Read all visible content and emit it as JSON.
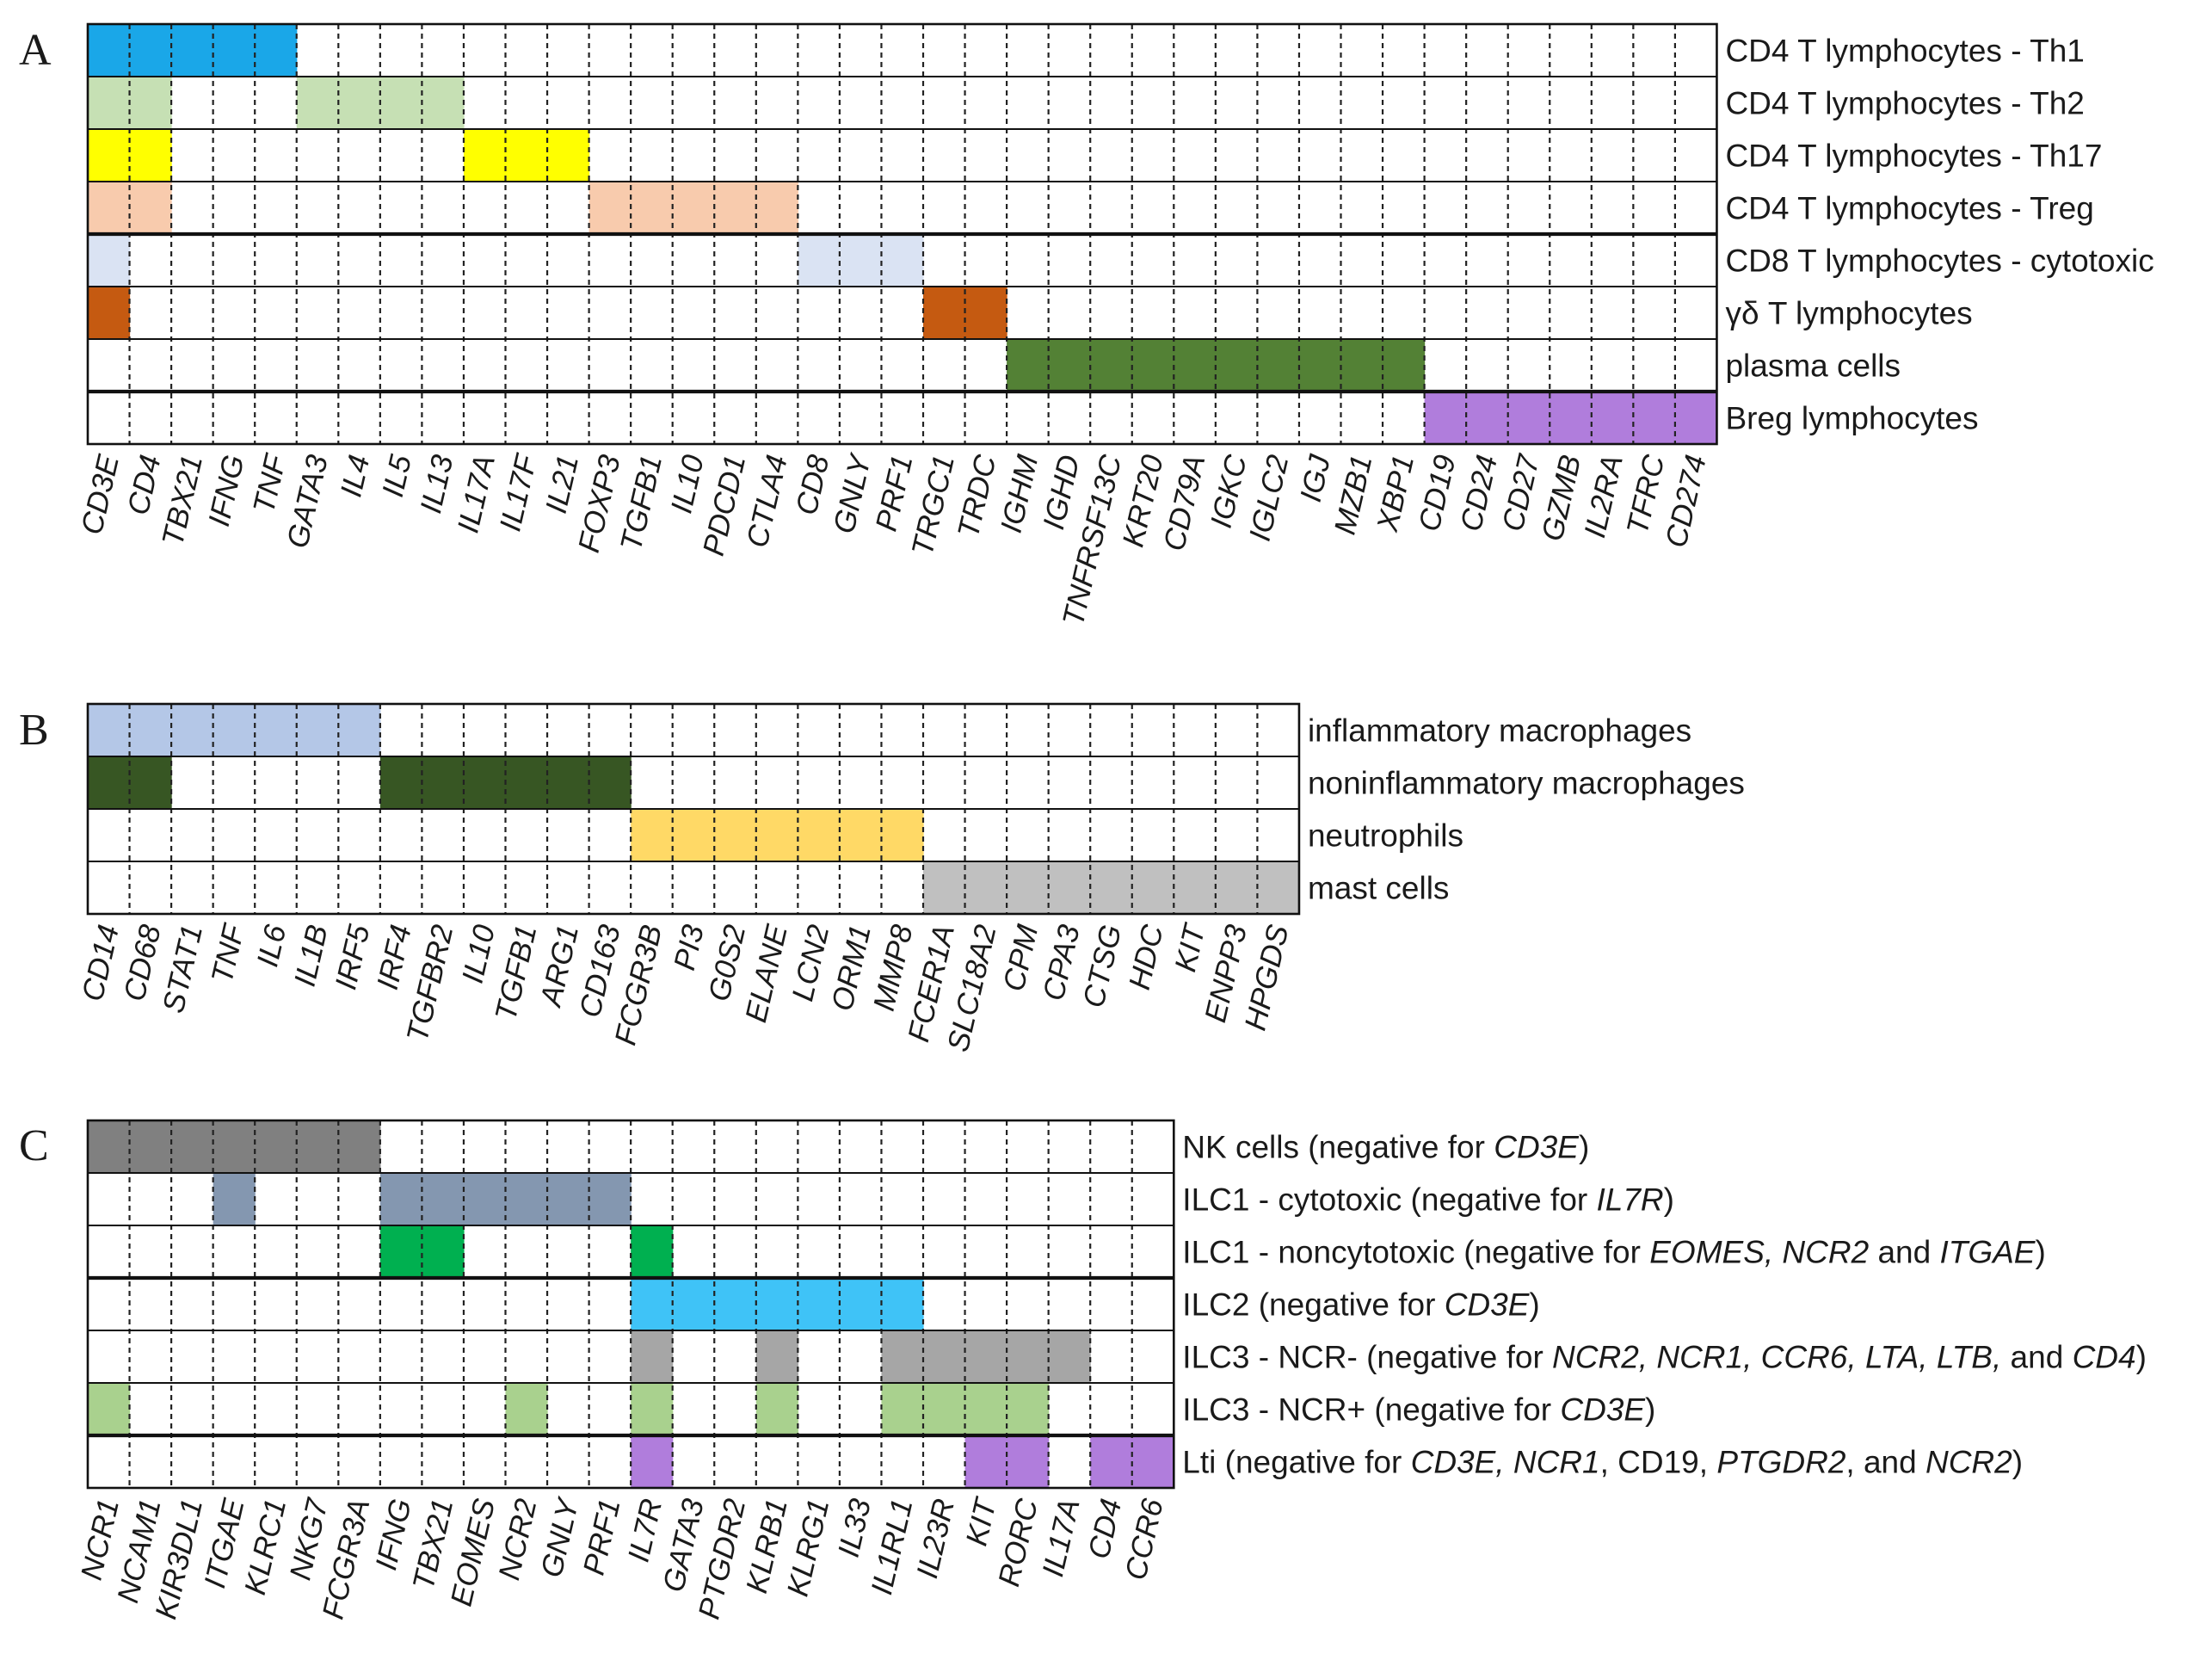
{
  "panels": [
    {
      "id": "A",
      "label": "A",
      "columns": [
        "CD3E",
        "CD4",
        "TBX21",
        "IFNG",
        "TNF",
        "GATA3",
        "IL4",
        "IL5",
        "IL13",
        "IL17A",
        "IL17F",
        "IL21",
        "FOXP3",
        "TGFB1",
        "IL10",
        "PDCD1",
        "CTLA4",
        "CD8",
        "GNLY",
        "PRF1",
        "TRGC1",
        "TRDC",
        "IGHM",
        "IGHD",
        "TNFRSF13C",
        "KRT20",
        "CD79A",
        "IGKC",
        "IGLC2",
        "IGJ",
        "MZB1",
        "XBP1",
        "CD19",
        "CD24",
        "CD27",
        "GZMB",
        "IL2RA",
        "TFRC",
        "CD274"
      ],
      "thick_after_rows": [
        3,
        6
      ],
      "rows": [
        {
          "label": [
            {
              "t": "CD4 T lymphocytes - Th1"
            }
          ],
          "color": "#1aa7e8",
          "cols": [
            0,
            1,
            2,
            3,
            4
          ]
        },
        {
          "label": [
            {
              "t": "CD4 T lymphocytes - Th2"
            }
          ],
          "color": "#c6e0b4",
          "cols": [
            0,
            1,
            5,
            6,
            7,
            8
          ]
        },
        {
          "label": [
            {
              "t": "CD4 T lymphocytes - Th17"
            }
          ],
          "color": "#ffff00",
          "cols": [
            0,
            1,
            9,
            10,
            11
          ]
        },
        {
          "label": [
            {
              "t": "CD4 T lymphocytes - Treg"
            }
          ],
          "color": "#f8cbad",
          "cols": [
            0,
            1,
            12,
            13,
            14,
            15,
            16
          ]
        },
        {
          "label": [
            {
              "t": "CD8 T lymphocytes - cytotoxic"
            }
          ],
          "color": "#dae3f3",
          "cols": [
            0,
            17,
            18,
            19
          ]
        },
        {
          "label": [
            {
              "t": "γδ T lymphocytes"
            }
          ],
          "color": "#c55a11",
          "cols": [
            0,
            20,
            21
          ]
        },
        {
          "label": [
            {
              "t": "plasma cells"
            }
          ],
          "color": "#538135",
          "cols": [
            22,
            23,
            24,
            25,
            26,
            27,
            28,
            29,
            30,
            31
          ]
        },
        {
          "label": [
            {
              "t": "Breg lymphocytes"
            }
          ],
          "color": "#b07ddc",
          "cols": [
            32,
            33,
            34,
            35,
            36,
            37,
            38
          ]
        }
      ]
    },
    {
      "id": "B",
      "label": "B",
      "columns": [
        "CD14",
        "CD68",
        "STAT1",
        "TNF",
        "IL6",
        "IL1B",
        "IRF5",
        "IRF4",
        "TGFBR2",
        "IL10",
        "TGFB1",
        "ARG1",
        "CD163",
        "FCGR3B",
        "PI3",
        "G0S2",
        "ELANE",
        "LCN2",
        "ORM1",
        "MMP8",
        "FCER1A",
        "SLC18A2",
        "CPM",
        "CPA3",
        "CTSG",
        "HDC",
        "KIT",
        "ENPP3",
        "HPGDS"
      ],
      "thick_after_rows": [],
      "rows": [
        {
          "label": [
            {
              "t": "inflammatory macrophages"
            }
          ],
          "color": "#b4c7e7",
          "cols": [
            0,
            1,
            2,
            3,
            4,
            5,
            6
          ]
        },
        {
          "label": [
            {
              "t": "noninflammatory macrophages"
            }
          ],
          "color": "#375623",
          "cols": [
            0,
            1,
            7,
            8,
            9,
            10,
            11,
            12
          ]
        },
        {
          "label": [
            {
              "t": "neutrophils"
            }
          ],
          "color": "#ffd966",
          "cols": [
            13,
            14,
            15,
            16,
            17,
            18,
            19
          ]
        },
        {
          "label": [
            {
              "t": "mast cells"
            }
          ],
          "color": "#c0c0c0",
          "cols": [
            20,
            21,
            22,
            23,
            24,
            25,
            26,
            27,
            28
          ]
        }
      ]
    },
    {
      "id": "C",
      "label": "C",
      "columns": [
        "NCR1",
        "NCAM1",
        "KIR3DL1",
        "ITGAE",
        "KLRC1",
        "NKG7",
        "FCGR3A",
        "IFNG",
        "TBX21",
        "EOMES",
        "NCR2",
        "GNLY",
        "PRF1",
        "IL7R",
        "GATA3",
        "PTGDR2",
        "KLRB1",
        "KLRG1",
        "IL33",
        "IL1RL1",
        "IL23R",
        "KIT",
        "RORC",
        "IL17A",
        "CD4",
        "CCR6"
      ],
      "thick_after_rows": [
        2,
        5
      ],
      "rows": [
        {
          "label": [
            {
              "t": "NK cells (negative for "
            },
            {
              "t": "CD3E",
              "i": true
            },
            {
              "t": ")"
            }
          ],
          "color": "#808080",
          "cols": [
            0,
            1,
            2,
            3,
            4,
            5,
            6
          ]
        },
        {
          "label": [
            {
              "t": "ILC1 - cytotoxic (negative for "
            },
            {
              "t": "IL7R",
              "i": true
            },
            {
              "t": ")"
            }
          ],
          "color": "#8497b0",
          "cols": [
            3,
            7,
            8,
            9,
            10,
            11,
            12
          ]
        },
        {
          "label": [
            {
              "t": "ILC1 - noncytotoxic (negative for "
            },
            {
              "t": "EOMES, NCR2",
              "i": true
            },
            {
              "t": " and "
            },
            {
              "t": "ITGAE",
              "i": true
            },
            {
              "t": ")"
            }
          ],
          "color": "#00b050",
          "cols": [
            7,
            8,
            13
          ]
        },
        {
          "label": [
            {
              "t": "ILC2 (negative for "
            },
            {
              "t": "CD3E",
              "i": true
            },
            {
              "t": ")"
            }
          ],
          "color": "#3fc3f7",
          "cols": [
            13,
            14,
            15,
            16,
            17,
            18,
            19
          ]
        },
        {
          "label": [
            {
              "t": "ILC3 - NCR- (negative for "
            },
            {
              "t": "NCR2, NCR1, CCR6, LTA, LTB,",
              "i": true
            },
            {
              "t": " and "
            },
            {
              "t": "CD4",
              "i": true
            },
            {
              "t": ")"
            }
          ],
          "color": "#a6a6a6",
          "cols": [
            13,
            16,
            19,
            20,
            21,
            22,
            23
          ]
        },
        {
          "label": [
            {
              "t": "ILC3 - NCR+ (negative for "
            },
            {
              "t": "CD3E",
              "i": true
            },
            {
              "t": ")"
            }
          ],
          "color": "#a9d18e",
          "cols": [
            0,
            10,
            13,
            16,
            19,
            20,
            21,
            22
          ]
        },
        {
          "label": [
            {
              "t": "Lti (negative for "
            },
            {
              "t": "CD3E, NCR1",
              "i": true
            },
            {
              "t": ", CD19, "
            },
            {
              "t": "PTGDR2",
              "i": true
            },
            {
              "t": ", and "
            },
            {
              "t": "NCR2",
              "i": true
            },
            {
              "t": ")"
            }
          ],
          "color": "#b07ddc",
          "cols": [
            13,
            21,
            22,
            24,
            25
          ]
        }
      ]
    }
  ]
}
